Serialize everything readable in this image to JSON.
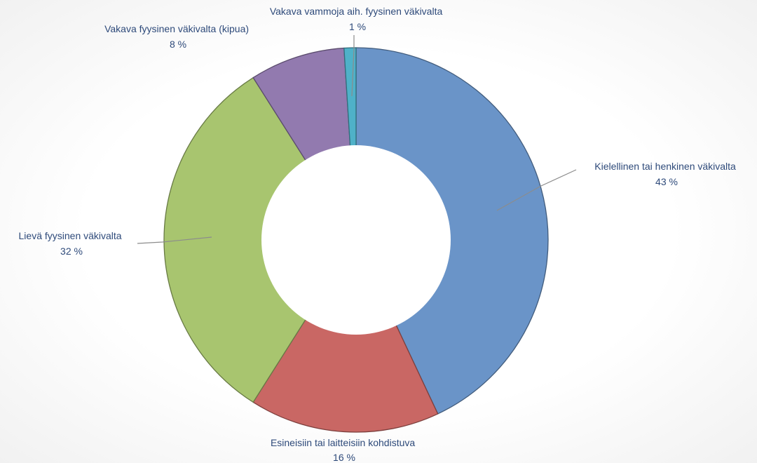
{
  "chart_data": {
    "type": "pie",
    "subtype": "donut",
    "title": "",
    "slices": [
      {
        "label": "Kielellinen tai henkinen väkivalta",
        "value": 43,
        "value_label": "43 %",
        "color": "#6a94c8"
      },
      {
        "label": "Esineisiin tai laitteisiin kohdistuva",
        "value": 16,
        "value_label": "16 %",
        "color": "#c96764"
      },
      {
        "label": "Lievä fyysinen väkivalta",
        "value": 32,
        "value_label": "32 %",
        "color": "#a8c56f"
      },
      {
        "label": "Vakava fyysinen väkivalta (kipua)",
        "value": 8,
        "value_label": "8 %",
        "color": "#927aaf"
      },
      {
        "label": "Vakava vammoja aih. fyysinen väkivalta",
        "value": 1,
        "value_label": "1 %",
        "color": "#4fb1c8"
      }
    ],
    "legend": "none",
    "data_labels": "outside with leader lines"
  }
}
